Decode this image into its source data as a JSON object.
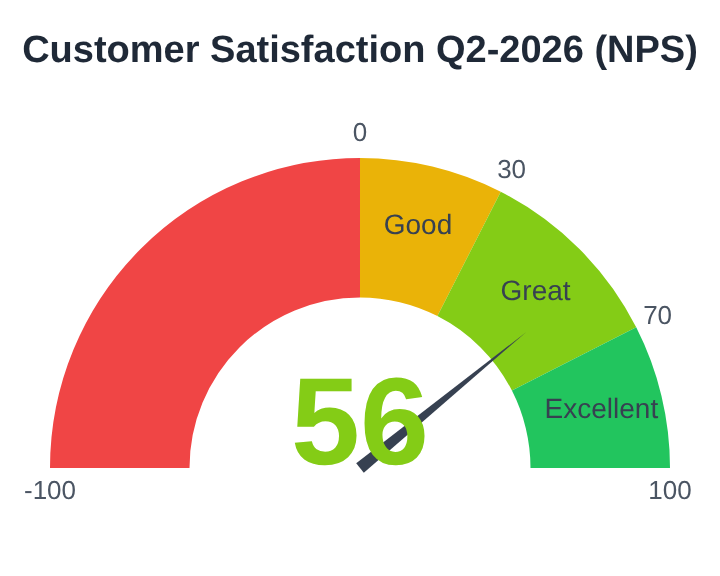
{
  "chart_data": {
    "type": "donut",
    "title": "Customer Satisfaction Q2-2026 (NPS)",
    "categories": [
      null,
      "Good",
      "Great",
      "Excellent"
    ],
    "values": [
      50,
      15,
      20,
      15
    ],
    "colors": [
      "#f04545",
      "#eab308",
      "#84cc16",
      "#22c55e"
    ],
    "needle": "Great",
    "annotations": [
      "56",
      "-100",
      "0",
      "30",
      "70",
      "100"
    ],
    "legend": false
  }
}
